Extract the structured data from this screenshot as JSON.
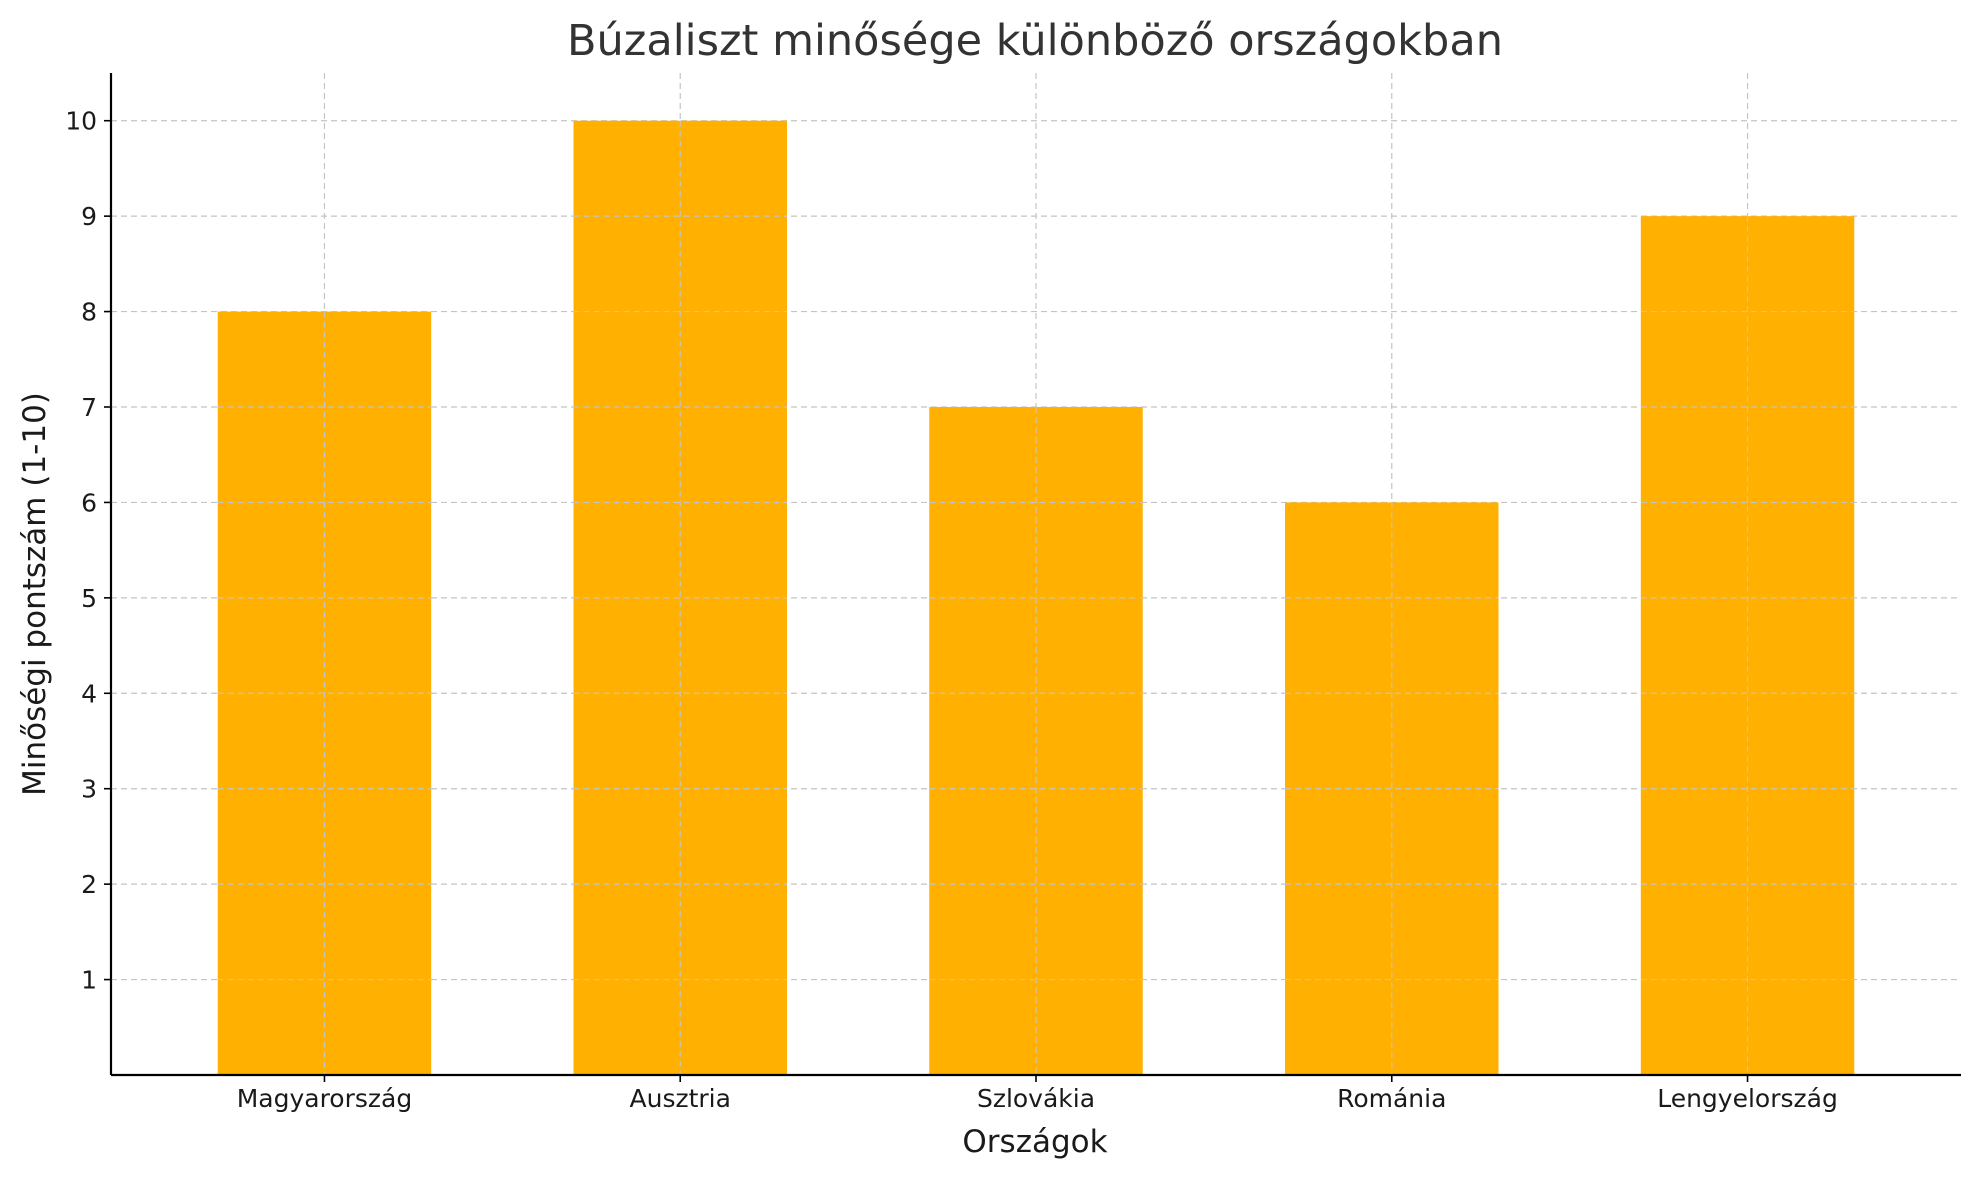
{
  "chart_data": {
    "type": "bar",
    "title": "Búzaliszt minősége különböző országokban",
    "xlabel": "Országok",
    "ylabel": "Minőségi pontszám (1-10)",
    "categories": [
      "Magyarország",
      "Ausztria",
      "Szlovákia",
      "Románia",
      "Lengyelország"
    ],
    "values": [
      8,
      10,
      7,
      6,
      9
    ],
    "ylim": [
      0,
      10.5
    ],
    "yticks": [
      1,
      2,
      3,
      4,
      5,
      6,
      7,
      8,
      9,
      10
    ],
    "grid": true,
    "bar_color": "#FFB000"
  }
}
